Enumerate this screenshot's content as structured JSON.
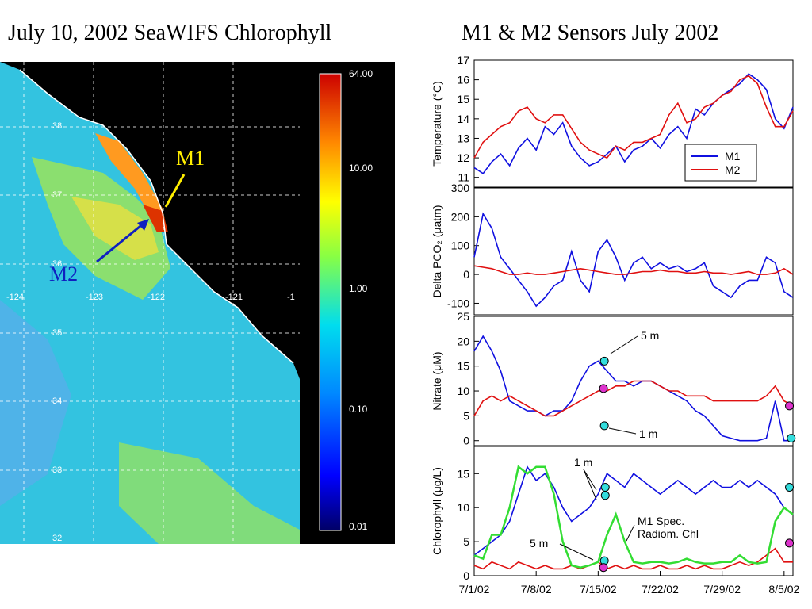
{
  "titles": {
    "left": "July 10, 2002  SeaWIFS Chlorophyll",
    "right": "M1 & M2 Sensors July 2002"
  },
  "colors": {
    "m1": "#1010e0",
    "m2": "#e01010",
    "spec": "#33dd33",
    "sample_cyan": "#33dddd",
    "sample_magenta": "#dd33cc",
    "m1_label": "#ffee00",
    "m2_label": "#1020c0"
  },
  "map": {
    "m1_label": "M1",
    "m2_label": "M2",
    "lat_labels": [
      "38",
      "37",
      "36",
      "35",
      "34",
      "33",
      "32"
    ],
    "lon_labels": [
      "-124",
      "-123",
      "-122",
      "-121",
      "-1"
    ],
    "colorbar_ticks": [
      "64.00",
      "10.00",
      "1.00",
      "0.10",
      "0.01"
    ]
  },
  "chart_data": [
    {
      "type": "line",
      "ylabel": "Temperature (°C)",
      "ylim": [
        10.5,
        17
      ],
      "yticks": [
        11,
        12,
        13,
        14,
        15,
        16,
        17
      ],
      "legend": {
        "placement": "bottom-right",
        "entries": [
          "M1",
          "M2"
        ]
      },
      "series": [
        {
          "name": "M1",
          "x": [
            0,
            1,
            2,
            3,
            4,
            5,
            6,
            7,
            8,
            9,
            10,
            11,
            12,
            13,
            14,
            15,
            16,
            17,
            18,
            19,
            20,
            21,
            22,
            23,
            24,
            25,
            26,
            27,
            28,
            29,
            30,
            31,
            32,
            33,
            34,
            35,
            36
          ],
          "values": [
            11.5,
            11.2,
            11.8,
            12.2,
            11.6,
            12.5,
            13.0,
            12.4,
            13.6,
            13.2,
            13.8,
            12.6,
            12.0,
            11.6,
            11.8,
            12.2,
            12.6,
            11.8,
            12.4,
            12.6,
            13.0,
            12.5,
            13.2,
            13.6,
            13.0,
            14.5,
            14.2,
            14.8,
            15.2,
            15.5,
            15.8,
            16.3,
            16.0,
            15.5,
            14.0,
            13.5,
            14.6
          ]
        },
        {
          "name": "M2",
          "x": [
            0,
            1,
            2,
            3,
            4,
            5,
            6,
            7,
            8,
            9,
            10,
            11,
            12,
            13,
            14,
            15,
            16,
            17,
            18,
            19,
            20,
            21,
            22,
            23,
            24,
            25,
            26,
            27,
            28,
            29,
            30,
            31,
            32,
            33,
            34,
            35,
            36
          ],
          "values": [
            12.0,
            12.8,
            13.2,
            13.6,
            13.8,
            14.4,
            14.6,
            14.0,
            13.8,
            14.2,
            14.2,
            13.5,
            12.8,
            12.4,
            12.2,
            12.0,
            12.6,
            12.4,
            12.8,
            12.8,
            13.0,
            13.2,
            14.2,
            14.8,
            13.8,
            14.0,
            14.6,
            14.8,
            15.2,
            15.4,
            16.0,
            16.2,
            15.8,
            14.6,
            13.6,
            13.6,
            14.4
          ]
        }
      ]
    },
    {
      "type": "line",
      "ylabel": "Delta PCO₂ (μatm)",
      "ylim": [
        -140,
        300
      ],
      "yticks": [
        -100,
        0,
        100,
        200,
        300
      ],
      "series": [
        {
          "name": "M1",
          "x": [
            0,
            1,
            2,
            3,
            4,
            5,
            6,
            7,
            8,
            9,
            10,
            11,
            12,
            13,
            14,
            15,
            16,
            17,
            18,
            19,
            20,
            21,
            22,
            23,
            24,
            25,
            26,
            27,
            28,
            29,
            30,
            31,
            32,
            33,
            34,
            35,
            36
          ],
          "values": [
            60,
            210,
            160,
            60,
            20,
            -20,
            -60,
            -110,
            -80,
            -40,
            -20,
            80,
            -20,
            -60,
            80,
            120,
            60,
            -20,
            40,
            60,
            20,
            40,
            20,
            30,
            10,
            20,
            40,
            -40,
            -60,
            -80,
            -40,
            -20,
            -20,
            60,
            40,
            -60,
            -80
          ]
        },
        {
          "name": "M2",
          "x": [
            0,
            1,
            2,
            3,
            4,
            5,
            6,
            7,
            8,
            9,
            10,
            11,
            12,
            13,
            14,
            15,
            16,
            17,
            18,
            19,
            20,
            21,
            22,
            23,
            24,
            25,
            26,
            27,
            28,
            29,
            30,
            31,
            32,
            33,
            34,
            35,
            36
          ],
          "values": [
            30,
            25,
            20,
            10,
            0,
            0,
            5,
            0,
            0,
            5,
            10,
            15,
            20,
            15,
            10,
            5,
            0,
            0,
            5,
            10,
            10,
            15,
            10,
            10,
            5,
            5,
            10,
            5,
            5,
            0,
            5,
            10,
            0,
            0,
            5,
            20,
            0
          ]
        }
      ]
    },
    {
      "type": "line",
      "ylabel": "Nitrate (μM)",
      "ylim": [
        -1,
        25
      ],
      "yticks": [
        0,
        5,
        10,
        15,
        20,
        25
      ],
      "annotations": [
        "5 m",
        "1 m"
      ],
      "series": [
        {
          "name": "M1",
          "x": [
            0,
            1,
            2,
            3,
            4,
            5,
            6,
            7,
            8,
            9,
            10,
            11,
            12,
            13,
            14,
            15,
            16,
            17,
            18,
            19,
            20,
            21,
            22,
            23,
            24,
            25,
            26,
            27,
            28,
            29,
            30,
            31,
            32,
            33,
            34,
            35,
            36
          ],
          "values": [
            18,
            21,
            18,
            14,
            8,
            7,
            6,
            6,
            5,
            6,
            6,
            8,
            12,
            15,
            16,
            14,
            12,
            12,
            11,
            12,
            12,
            11,
            10,
            9,
            8,
            6,
            5,
            3,
            1,
            0.5,
            0,
            0,
            0,
            0.5,
            8,
            0,
            0
          ]
        },
        {
          "name": "M2",
          "x": [
            0,
            1,
            2,
            3,
            4,
            5,
            6,
            7,
            8,
            9,
            10,
            11,
            12,
            13,
            14,
            15,
            16,
            17,
            18,
            19,
            20,
            21,
            22,
            23,
            24,
            25,
            26,
            27,
            28,
            29,
            30,
            31,
            32,
            33,
            34,
            35,
            36
          ],
          "values": [
            5,
            8,
            9,
            8,
            9,
            8,
            7,
            6,
            5,
            5,
            6,
            7,
            8,
            9,
            10,
            10,
            11,
            11,
            12,
            12,
            12,
            11,
            10,
            10,
            9,
            9,
            9,
            8,
            8,
            8,
            8,
            8,
            8,
            9,
            11,
            8,
            7
          ]
        }
      ],
      "samples": [
        {
          "x": 14.7,
          "y": 16,
          "kind": "cyan"
        },
        {
          "x": 14.6,
          "y": 10.5,
          "kind": "magenta"
        },
        {
          "x": 14.7,
          "y": 3,
          "kind": "cyan"
        },
        {
          "x": 35.6,
          "y": 7,
          "kind": "magenta"
        },
        {
          "x": 35.8,
          "y": 0.5,
          "kind": "cyan"
        }
      ]
    },
    {
      "type": "line",
      "ylabel": "Chlorophyll (μg/L)",
      "ylim": [
        0,
        19
      ],
      "yticks": [
        0,
        5,
        10,
        15
      ],
      "annotations": [
        "1 m",
        "5 m",
        "M1 Spec.",
        "Radiom. Chl"
      ],
      "xlabels": [
        "7/1/02",
        "7/8/02",
        "7/15/02",
        "7/22/02",
        "7/29/02",
        "8/5/02"
      ],
      "series": [
        {
          "name": "M1",
          "x": [
            0,
            1,
            2,
            3,
            4,
            5,
            6,
            7,
            8,
            9,
            10,
            11,
            12,
            13,
            14,
            15,
            16,
            17,
            18,
            19,
            20,
            21,
            22,
            23,
            24,
            25,
            26,
            27,
            28,
            29,
            30,
            31,
            32,
            33,
            34,
            35,
            36
          ],
          "values": [
            3,
            4,
            5,
            6,
            8,
            12,
            16,
            14,
            15,
            13,
            10,
            8,
            9,
            10,
            12,
            15,
            14,
            13,
            15,
            14,
            13,
            12,
            13,
            14,
            13,
            12,
            13,
            14,
            13,
            13,
            14,
            13,
            14,
            13,
            12,
            10,
            9
          ]
        },
        {
          "name": "M2",
          "x": [
            0,
            1,
            2,
            3,
            4,
            5,
            6,
            7,
            8,
            9,
            10,
            11,
            12,
            13,
            14,
            15,
            16,
            17,
            18,
            19,
            20,
            21,
            22,
            23,
            24,
            25,
            26,
            27,
            28,
            29,
            30,
            31,
            32,
            33,
            34,
            35,
            36
          ],
          "values": [
            1.5,
            1,
            2,
            1.5,
            1,
            2,
            1.5,
            1,
            1.5,
            1,
            1,
            1.5,
            1,
            1.5,
            2,
            1,
            1.5,
            1,
            1.5,
            1,
            1,
            1.5,
            1,
            1,
            1.5,
            1,
            1.5,
            1,
            1,
            1.5,
            2,
            1.5,
            2,
            3,
            4,
            2,
            2
          ]
        },
        {
          "name": "M1 Spec. Radiom. Chl",
          "x": [
            0,
            1,
            2,
            3,
            4,
            5,
            6,
            7,
            8,
            9,
            10,
            11,
            12,
            13,
            14,
            15,
            16,
            17,
            18,
            19,
            20,
            21,
            22,
            23,
            24,
            25,
            26,
            27,
            28,
            29,
            30,
            31,
            32,
            33,
            34,
            35,
            36
          ],
          "values": [
            3,
            2.5,
            6,
            6,
            10,
            16,
            15,
            16,
            16,
            12,
            5,
            1.5,
            1.2,
            1.5,
            2,
            6,
            9,
            5,
            2,
            1.8,
            2,
            2,
            1.8,
            2,
            2.5,
            2,
            1.8,
            1.8,
            2,
            2,
            3,
            2,
            1.8,
            2,
            8,
            10,
            9
          ]
        }
      ],
      "samples": [
        {
          "x": 14.8,
          "y": 13,
          "kind": "cyan"
        },
        {
          "x": 14.8,
          "y": 11.8,
          "kind": "cyan"
        },
        {
          "x": 14.7,
          "y": 2.2,
          "kind": "cyan"
        },
        {
          "x": 14.6,
          "y": 1.2,
          "kind": "magenta"
        },
        {
          "x": 35.6,
          "y": 13,
          "kind": "cyan"
        },
        {
          "x": 35.6,
          "y": 4.8,
          "kind": "magenta"
        }
      ]
    }
  ]
}
